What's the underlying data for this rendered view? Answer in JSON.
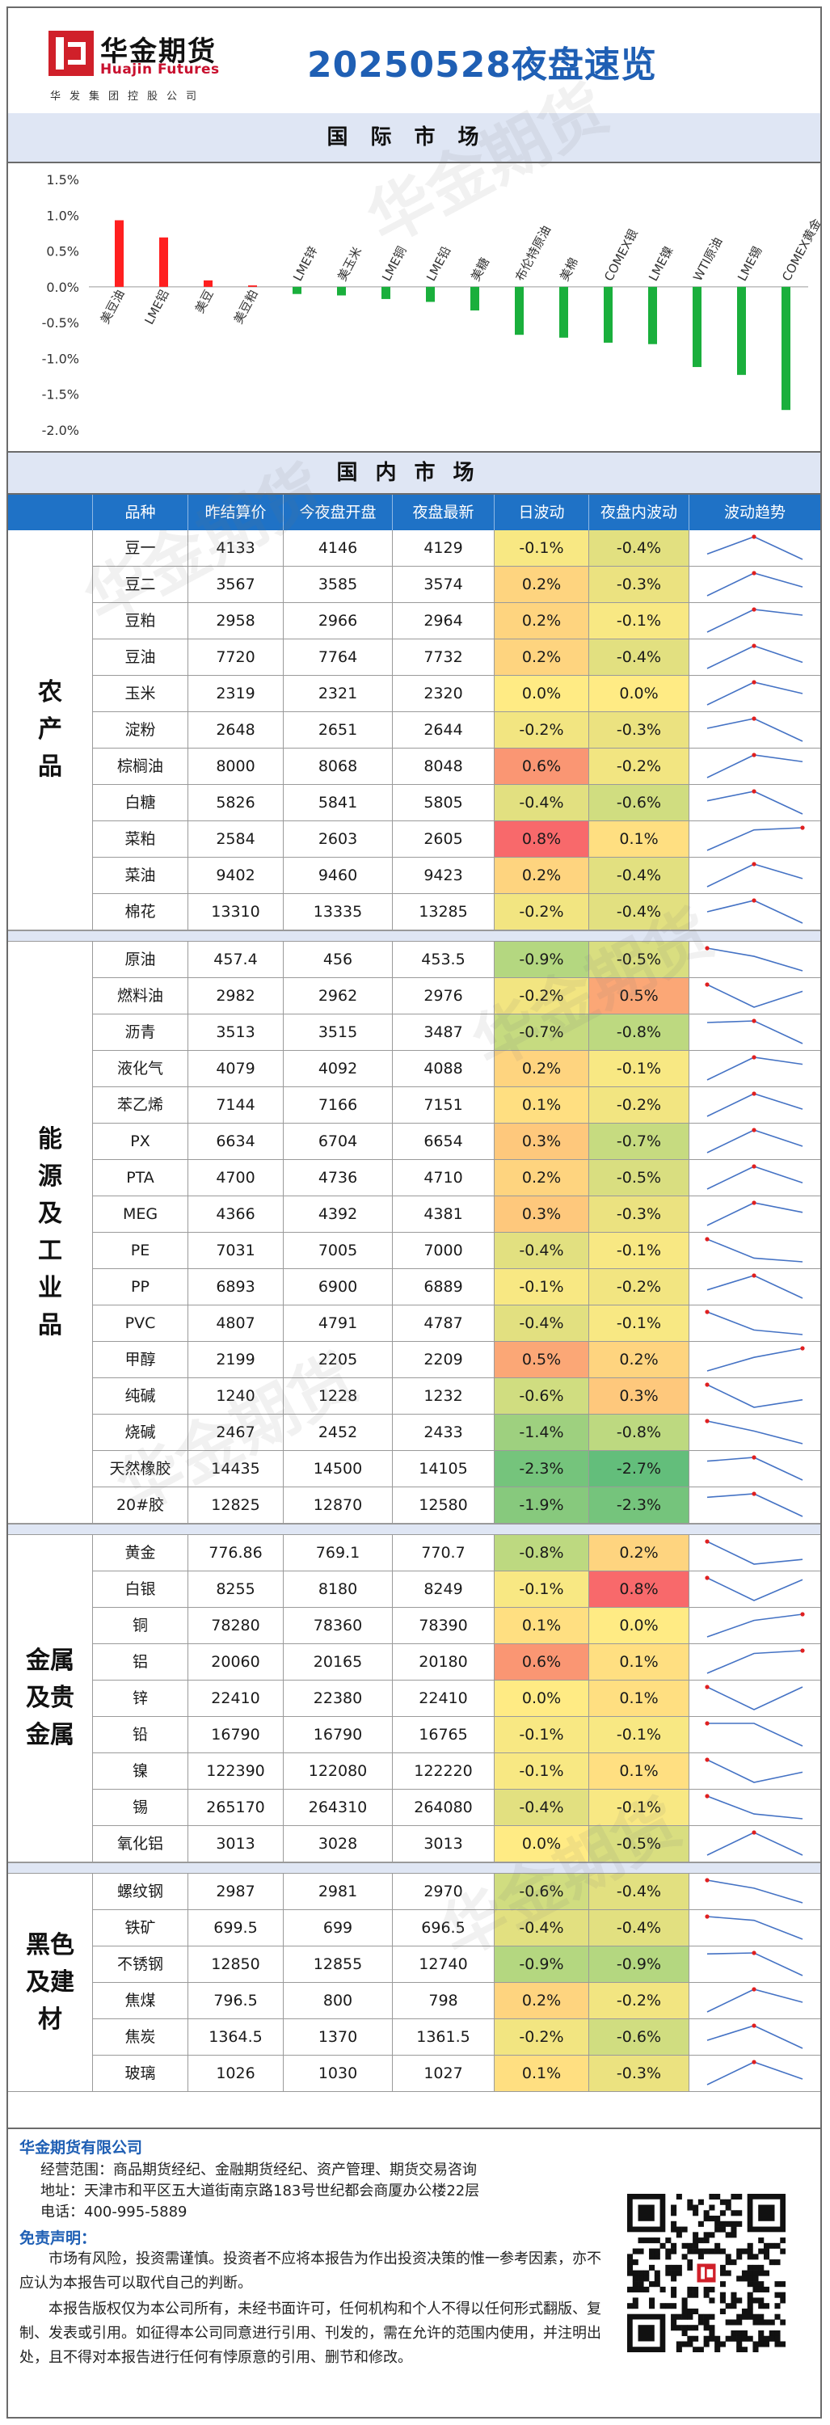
{
  "header": {
    "logo_cn": "华金期货",
    "logo_en": "Huajin Futures",
    "logo_sub": "华发集团控股公司",
    "title": "20250528夜盘速览"
  },
  "sections": {
    "international": "国际市场",
    "domestic": "国内市场"
  },
  "chart_data": {
    "type": "bar",
    "categories": [
      "美豆油",
      "LME铝",
      "美豆",
      "美豆粕",
      "LME锌",
      "美玉米",
      "LME铜",
      "LME铅",
      "美糖",
      "布伦特原油",
      "美棉",
      "COMEX银",
      "LME镍",
      "WTI原油",
      "LME锡",
      "COMEX黄金"
    ],
    "values": [
      0.93,
      0.69,
      0.09,
      0.02,
      -0.1,
      -0.12,
      -0.17,
      -0.21,
      -0.33,
      -0.67,
      -0.71,
      -0.78,
      -0.8,
      -1.12,
      -1.23,
      -1.72
    ],
    "ylim": [
      -2.0,
      1.5
    ],
    "yticks": [
      "1.5%",
      "1.0%",
      "0.5%",
      "0.0%",
      "-0.5%",
      "-1.0%",
      "-1.5%",
      "-2.0%"
    ],
    "ytick_values": [
      1.5,
      1.0,
      0.5,
      0.0,
      -0.5,
      -1.0,
      -1.5,
      -2.0
    ],
    "up_color": "#ff1f1f",
    "down_color": "#1aaf3c",
    "grid": false
  },
  "table": {
    "headers": [
      "品种",
      "昨结算价",
      "今夜盘开盘",
      "夜盘最新",
      "日波动",
      "夜盘内波动",
      "波动趋势"
    ],
    "groups": [
      {
        "category": "农产品",
        "rows": [
          {
            "name": "豆一",
            "prev": "4133",
            "open": "4146",
            "last": "4129",
            "day": "-0.1%",
            "night": "-0.4%",
            "dayv": -0.1,
            "nightv": -0.4
          },
          {
            "name": "豆二",
            "prev": "3567",
            "open": "3585",
            "last": "3574",
            "day": "0.2%",
            "night": "-0.3%",
            "dayv": 0.2,
            "nightv": -0.3
          },
          {
            "name": "豆粕",
            "prev": "2958",
            "open": "2966",
            "last": "2964",
            "day": "0.2%",
            "night": "-0.1%",
            "dayv": 0.2,
            "nightv": -0.1
          },
          {
            "name": "豆油",
            "prev": "7720",
            "open": "7764",
            "last": "7732",
            "day": "0.2%",
            "night": "-0.4%",
            "dayv": 0.2,
            "nightv": -0.4
          },
          {
            "name": "玉米",
            "prev": "2319",
            "open": "2321",
            "last": "2320",
            "day": "0.0%",
            "night": "0.0%",
            "dayv": 0.0,
            "nightv": 0.0
          },
          {
            "name": "淀粉",
            "prev": "2648",
            "open": "2651",
            "last": "2644",
            "day": "-0.2%",
            "night": "-0.3%",
            "dayv": -0.2,
            "nightv": -0.3
          },
          {
            "name": "棕榈油",
            "prev": "8000",
            "open": "8068",
            "last": "8048",
            "day": "0.6%",
            "night": "-0.2%",
            "dayv": 0.6,
            "nightv": -0.2
          },
          {
            "name": "白糖",
            "prev": "5826",
            "open": "5841",
            "last": "5805",
            "day": "-0.4%",
            "night": "-0.6%",
            "dayv": -0.4,
            "nightv": -0.6
          },
          {
            "name": "菜粕",
            "prev": "2584",
            "open": "2603",
            "last": "2605",
            "day": "0.8%",
            "night": "0.1%",
            "dayv": 0.8,
            "nightv": 0.1
          },
          {
            "name": "菜油",
            "prev": "9402",
            "open": "9460",
            "last": "9423",
            "day": "0.2%",
            "night": "-0.4%",
            "dayv": 0.2,
            "nightv": -0.4
          },
          {
            "name": "棉花",
            "prev": "13310",
            "open": "13335",
            "last": "13285",
            "day": "-0.2%",
            "night": "-0.4%",
            "dayv": -0.2,
            "nightv": -0.4
          }
        ]
      },
      {
        "category": "能源及工业品",
        "rows": [
          {
            "name": "原油",
            "prev": "457.4",
            "open": "456",
            "last": "453.5",
            "day": "-0.9%",
            "night": "-0.5%",
            "dayv": -0.9,
            "nightv": -0.5
          },
          {
            "name": "燃料油",
            "prev": "2982",
            "open": "2962",
            "last": "2976",
            "day": "-0.2%",
            "night": "0.5%",
            "dayv": -0.2,
            "nightv": 0.5
          },
          {
            "name": "沥青",
            "prev": "3513",
            "open": "3515",
            "last": "3487",
            "day": "-0.7%",
            "night": "-0.8%",
            "dayv": -0.7,
            "nightv": -0.8
          },
          {
            "name": "液化气",
            "prev": "4079",
            "open": "4092",
            "last": "4088",
            "day": "0.2%",
            "night": "-0.1%",
            "dayv": 0.2,
            "nightv": -0.1
          },
          {
            "name": "苯乙烯",
            "prev": "7144",
            "open": "7166",
            "last": "7151",
            "day": "0.1%",
            "night": "-0.2%",
            "dayv": 0.1,
            "nightv": -0.2
          },
          {
            "name": "PX",
            "prev": "6634",
            "open": "6704",
            "last": "6654",
            "day": "0.3%",
            "night": "-0.7%",
            "dayv": 0.3,
            "nightv": -0.7
          },
          {
            "name": "PTA",
            "prev": "4700",
            "open": "4736",
            "last": "4710",
            "day": "0.2%",
            "night": "-0.5%",
            "dayv": 0.2,
            "nightv": -0.5
          },
          {
            "name": "MEG",
            "prev": "4366",
            "open": "4392",
            "last": "4381",
            "day": "0.3%",
            "night": "-0.3%",
            "dayv": 0.3,
            "nightv": -0.3
          },
          {
            "name": "PE",
            "prev": "7031",
            "open": "7005",
            "last": "7000",
            "day": "-0.4%",
            "night": "-0.1%",
            "dayv": -0.4,
            "nightv": -0.1
          },
          {
            "name": "PP",
            "prev": "6893",
            "open": "6900",
            "last": "6889",
            "day": "-0.1%",
            "night": "-0.2%",
            "dayv": -0.1,
            "nightv": -0.2
          },
          {
            "name": "PVC",
            "prev": "4807",
            "open": "4791",
            "last": "4787",
            "day": "-0.4%",
            "night": "-0.1%",
            "dayv": -0.4,
            "nightv": -0.1
          },
          {
            "name": "甲醇",
            "prev": "2199",
            "open": "2205",
            "last": "2209",
            "day": "0.5%",
            "night": "0.2%",
            "dayv": 0.5,
            "nightv": 0.2
          },
          {
            "name": "纯碱",
            "prev": "1240",
            "open": "1228",
            "last": "1232",
            "day": "-0.6%",
            "night": "0.3%",
            "dayv": -0.6,
            "nightv": 0.3
          },
          {
            "name": "烧碱",
            "prev": "2467",
            "open": "2452",
            "last": "2433",
            "day": "-1.4%",
            "night": "-0.8%",
            "dayv": -1.4,
            "nightv": -0.8
          },
          {
            "name": "天然橡胶",
            "prev": "14435",
            "open": "14500",
            "last": "14105",
            "day": "-2.3%",
            "night": "-2.7%",
            "dayv": -2.3,
            "nightv": -2.7
          },
          {
            "name": "20#胶",
            "prev": "12825",
            "open": "12870",
            "last": "12580",
            "day": "-1.9%",
            "night": "-2.3%",
            "dayv": -1.9,
            "nightv": -2.3
          }
        ]
      },
      {
        "category": "金属及贵金属",
        "rows": [
          {
            "name": "黄金",
            "prev": "776.86",
            "open": "769.1",
            "last": "770.7",
            "day": "-0.8%",
            "night": "0.2%",
            "dayv": -0.8,
            "nightv": 0.2
          },
          {
            "name": "白银",
            "prev": "8255",
            "open": "8180",
            "last": "8249",
            "day": "-0.1%",
            "night": "0.8%",
            "dayv": -0.1,
            "nightv": 0.8
          },
          {
            "name": "铜",
            "prev": "78280",
            "open": "78360",
            "last": "78390",
            "day": "0.1%",
            "night": "0.0%",
            "dayv": 0.1,
            "nightv": 0.0
          },
          {
            "name": "铝",
            "prev": "20060",
            "open": "20165",
            "last": "20180",
            "day": "0.6%",
            "night": "0.1%",
            "dayv": 0.6,
            "nightv": 0.1
          },
          {
            "name": "锌",
            "prev": "22410",
            "open": "22380",
            "last": "22410",
            "day": "0.0%",
            "night": "0.1%",
            "dayv": 0.0,
            "nightv": 0.1
          },
          {
            "name": "铅",
            "prev": "16790",
            "open": "16790",
            "last": "16765",
            "day": "-0.1%",
            "night": "-0.1%",
            "dayv": -0.1,
            "nightv": -0.1
          },
          {
            "name": "镍",
            "prev": "122390",
            "open": "122080",
            "last": "122220",
            "day": "-0.1%",
            "night": "0.1%",
            "dayv": -0.1,
            "nightv": 0.1
          },
          {
            "name": "锡",
            "prev": "265170",
            "open": "264310",
            "last": "264080",
            "day": "-0.4%",
            "night": "-0.1%",
            "dayv": -0.4,
            "nightv": -0.1
          },
          {
            "name": "氧化铝",
            "prev": "3013",
            "open": "3028",
            "last": "3013",
            "day": "0.0%",
            "night": "-0.5%",
            "dayv": 0.0,
            "nightv": -0.5
          }
        ]
      },
      {
        "category": "黑色及建材",
        "rows": [
          {
            "name": "螺纹钢",
            "prev": "2987",
            "open": "2981",
            "last": "2970",
            "day": "-0.6%",
            "night": "-0.4%",
            "dayv": -0.6,
            "nightv": -0.4
          },
          {
            "name": "铁矿",
            "prev": "699.5",
            "open": "699",
            "last": "696.5",
            "day": "-0.4%",
            "night": "-0.4%",
            "dayv": -0.4,
            "nightv": -0.4
          },
          {
            "name": "不锈钢",
            "prev": "12850",
            "open": "12855",
            "last": "12740",
            "day": "-0.9%",
            "night": "-0.9%",
            "dayv": -0.9,
            "nightv": -0.9
          },
          {
            "name": "焦煤",
            "prev": "796.5",
            "open": "800",
            "last": "798",
            "day": "0.2%",
            "night": "-0.2%",
            "dayv": 0.2,
            "nightv": -0.2
          },
          {
            "name": "焦炭",
            "prev": "1364.5",
            "open": "1370",
            "last": "1361.5",
            "day": "-0.2%",
            "night": "-0.6%",
            "dayv": -0.2,
            "nightv": -0.6
          },
          {
            "name": "玻璃",
            "prev": "1026",
            "open": "1030",
            "last": "1027",
            "day": "0.1%",
            "night": "-0.3%",
            "dayv": 0.1,
            "nightv": -0.3
          }
        ]
      }
    ]
  },
  "footer": {
    "company": "华金期货有限公司",
    "scope": "经营范围：商品期货经纪、金融期货经纪、资产管理、期货交易咨询",
    "address": "地址：天津市和平区五大道街南京路183号世纪都会商厦办公楼22层",
    "phone": "电话：400-995-5889",
    "disclaimer_title": "免责声明：",
    "disclaimer_1": "市场有风险，投资需谨慎。投资者不应将本报告为作出投资决策的惟一参考因素，亦不应认为本报告可以取代自己的判断。",
    "disclaimer_2": "本报告版权仅为本公司所有，未经书面许可，任何机构和个人不得以任何形式翻版、复制、发表或引用。如征得本公司同意进行引用、刊发的，需在允许的范围内使用，并注明出处，且不得对本报告进行任何有悖原意的引用、删节和修改。"
  },
  "colors": {
    "title_blue": "#1f5fb4",
    "header_blue": "#1f72c6",
    "band_bg": "#dfe6f4"
  }
}
